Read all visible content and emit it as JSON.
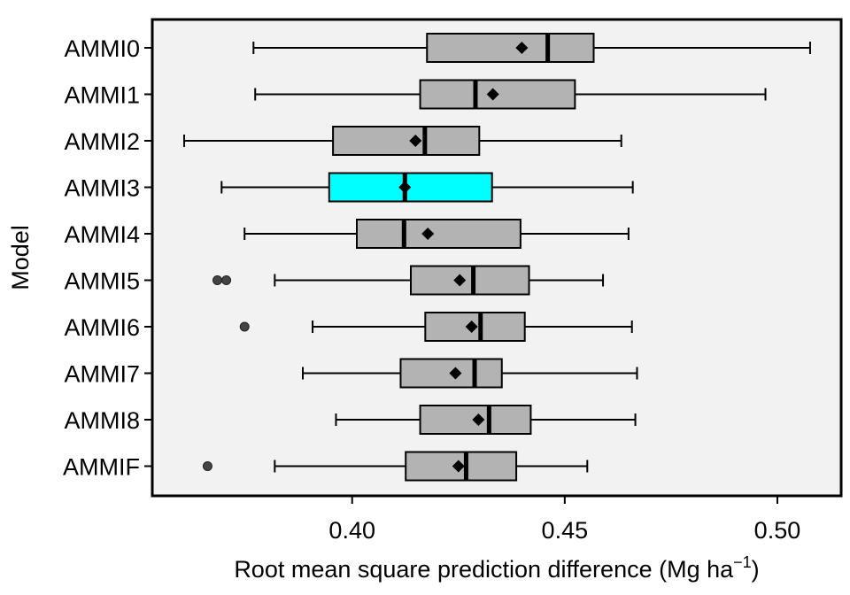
{
  "chart_data": {
    "type": "boxplot",
    "orientation": "horizontal",
    "xlabel": "Root mean square prediction difference (Mg ha",
    "xlabel_unit_exponent": "−1",
    "xlabel_close": ")",
    "ylabel": "Model",
    "xlim": [
      0.353,
      0.515
    ],
    "xticks": [
      {
        "value": 0.4,
        "label": "0.40"
      },
      {
        "value": 0.45,
        "label": "0.45"
      },
      {
        "value": 0.5,
        "label": "0.50"
      }
    ],
    "grid": false,
    "legend": "none",
    "colors": {
      "panel_background": "#f2f2f2",
      "box_default": "#b3b3b3",
      "box_highlight": "#00ffff",
      "stroke": "#000000",
      "outlier": "#444444"
    },
    "boxes": [
      {
        "label": "AMMI0",
        "whisker_low": 0.3768,
        "q1": 0.4176,
        "median": 0.446,
        "q3": 0.4568,
        "whisker_high": 0.5077,
        "mean": 0.4399,
        "outliers": [],
        "highlight": false
      },
      {
        "label": "AMMI1",
        "whisker_low": 0.3772,
        "q1": 0.416,
        "median": 0.429,
        "q3": 0.4524,
        "whisker_high": 0.4972,
        "mean": 0.4331,
        "outliers": [],
        "highlight": false
      },
      {
        "label": "AMMI2",
        "whisker_low": 0.3605,
        "q1": 0.3955,
        "median": 0.4171,
        "q3": 0.4299,
        "whisker_high": 0.4633,
        "mean": 0.4149,
        "outliers": [],
        "highlight": false
      },
      {
        "label": "AMMI3",
        "whisker_low": 0.3693,
        "q1": 0.3946,
        "median": 0.4124,
        "q3": 0.4329,
        "whisker_high": 0.466,
        "mean": 0.4124,
        "outliers": [],
        "highlight": true
      },
      {
        "label": "AMMI4",
        "whisker_low": 0.3747,
        "q1": 0.4011,
        "median": 0.4122,
        "q3": 0.4396,
        "whisker_high": 0.465,
        "mean": 0.4178,
        "outliers": [],
        "highlight": false
      },
      {
        "label": "AMMI5",
        "whisker_low": 0.3818,
        "q1": 0.4138,
        "median": 0.4285,
        "q3": 0.4416,
        "whisker_high": 0.459,
        "mean": 0.4253,
        "outliers": [
          0.3683,
          0.3704
        ],
        "highlight": false
      },
      {
        "label": "AMMI6",
        "whisker_low": 0.3907,
        "q1": 0.4172,
        "median": 0.4302,
        "q3": 0.4406,
        "whisker_high": 0.4658,
        "mean": 0.4281,
        "outliers": [
          0.3747
        ],
        "highlight": false
      },
      {
        "label": "AMMI7",
        "whisker_low": 0.3884,
        "q1": 0.4114,
        "median": 0.4288,
        "q3": 0.4352,
        "whisker_high": 0.467,
        "mean": 0.4243,
        "outliers": [],
        "highlight": false
      },
      {
        "label": "AMMI8",
        "whisker_low": 0.3962,
        "q1": 0.416,
        "median": 0.4322,
        "q3": 0.442,
        "whisker_high": 0.4666,
        "mean": 0.4297,
        "outliers": [],
        "highlight": false
      },
      {
        "label": "AMMIF",
        "whisker_low": 0.3818,
        "q1": 0.4126,
        "median": 0.4268,
        "q3": 0.4386,
        "whisker_high": 0.4553,
        "mean": 0.425,
        "outliers": [
          0.366
        ],
        "highlight": false
      }
    ]
  }
}
